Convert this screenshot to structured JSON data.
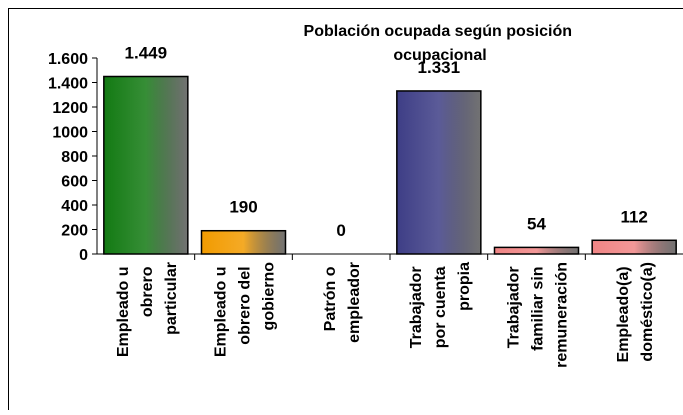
{
  "chart_data": {
    "type": "bar",
    "title": "Población ocupada según posición ocupacional",
    "categories": [
      "Empleado u obrero particular",
      "Empleado u obrero del gobierno",
      "Patrón o empleador",
      "Trabajador por cuenta propia",
      "Trabajador familiar sin remuneración",
      "Empleado(a) doméstico(a)"
    ],
    "values": [
      1449,
      190,
      0,
      1331,
      54,
      112
    ],
    "value_labels": [
      "1.449",
      "190",
      "0",
      "1.331",
      "54",
      "112"
    ],
    "colors": [
      "#137a13",
      "#f29b00",
      "#0b8585",
      "#3e3e86",
      "#f08585",
      "#f08585"
    ],
    "ylim": [
      0,
      1600
    ],
    "yticks": [
      0,
      200,
      400,
      600,
      800,
      1000,
      1200,
      {
        "value": 1400,
        "label": "1.400"
      },
      {
        "value": 1600,
        "label": "1.600"
      }
    ]
  }
}
